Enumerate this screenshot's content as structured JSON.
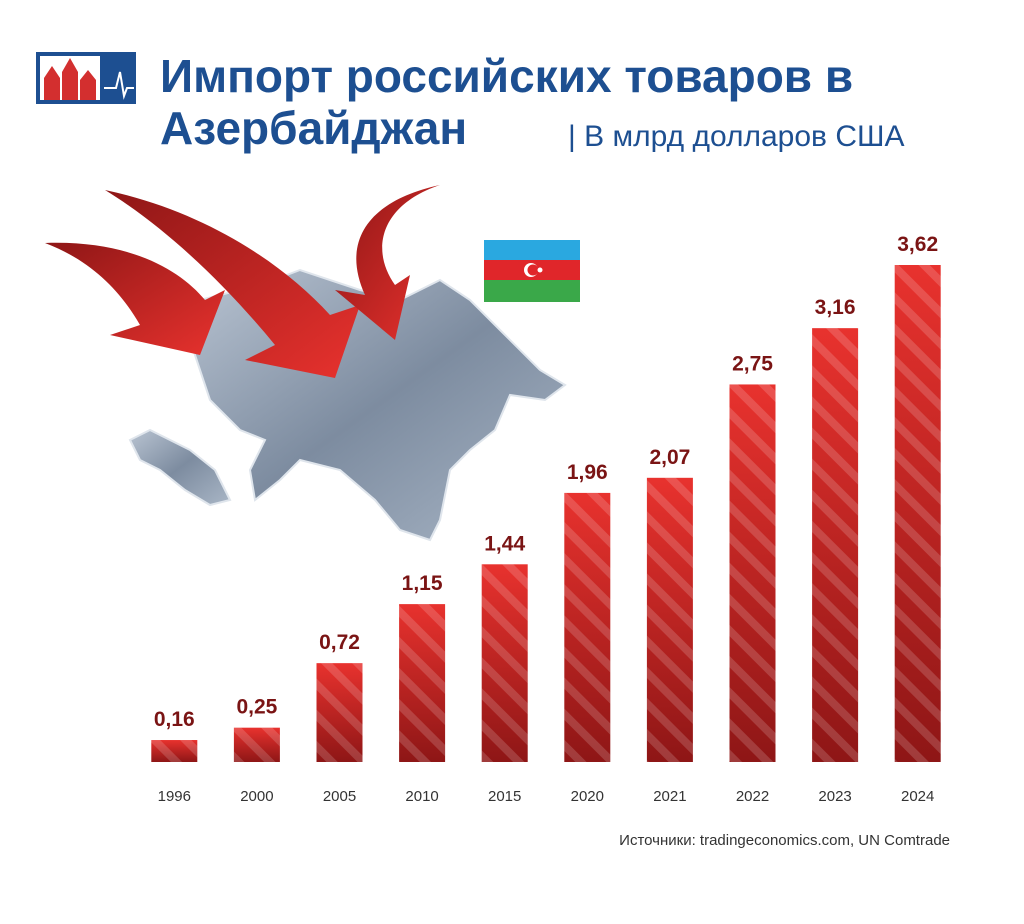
{
  "chart_data": {
    "type": "bar",
    "title": "Импорт российских товаров в Азербайджан",
    "subtitle": "В млрд долларов США",
    "source": "Источники: tradingeconomics.com, UN Comtrade",
    "categories": [
      "1996",
      "2000",
      "2005",
      "2010",
      "2015",
      "2020",
      "2021",
      "2022",
      "2023",
      "2024"
    ],
    "values": [
      0.16,
      0.25,
      0.72,
      1.15,
      1.44,
      1.96,
      2.07,
      2.75,
      3.16,
      3.62
    ],
    "value_labels": [
      "0,16",
      "0,25",
      "0,72",
      "1,15",
      "1,44",
      "1,96",
      "2,07",
      "2,75",
      "3,16",
      "3,62"
    ],
    "color": "#c62828"
  }
}
